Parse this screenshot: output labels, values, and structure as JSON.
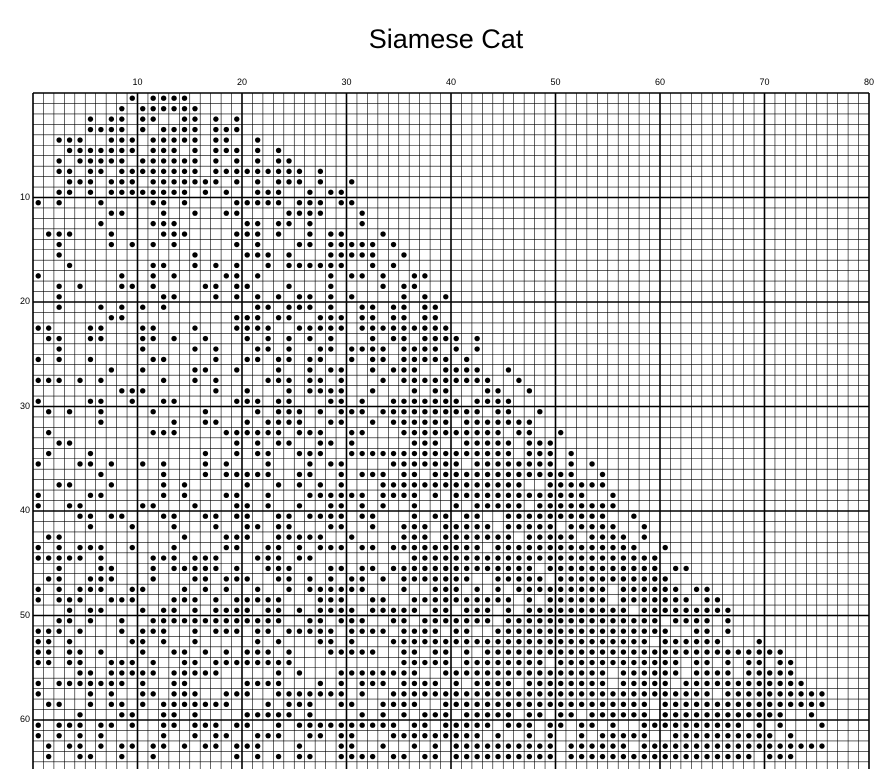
{
  "title": "Siamese Cat",
  "pattern": {
    "columns": 80,
    "visible_rows": 64,
    "column_labels": [
      "10",
      "20",
      "30",
      "40",
      "50",
      "60",
      "70",
      "80"
    ],
    "row_labels": [
      "10",
      "20",
      "30",
      "40",
      "50",
      "60"
    ],
    "stitch_symbol": "filled-dot",
    "grid_color": "#000000",
    "stitch_color": "#000000",
    "background_color": "#ffffff"
  }
}
